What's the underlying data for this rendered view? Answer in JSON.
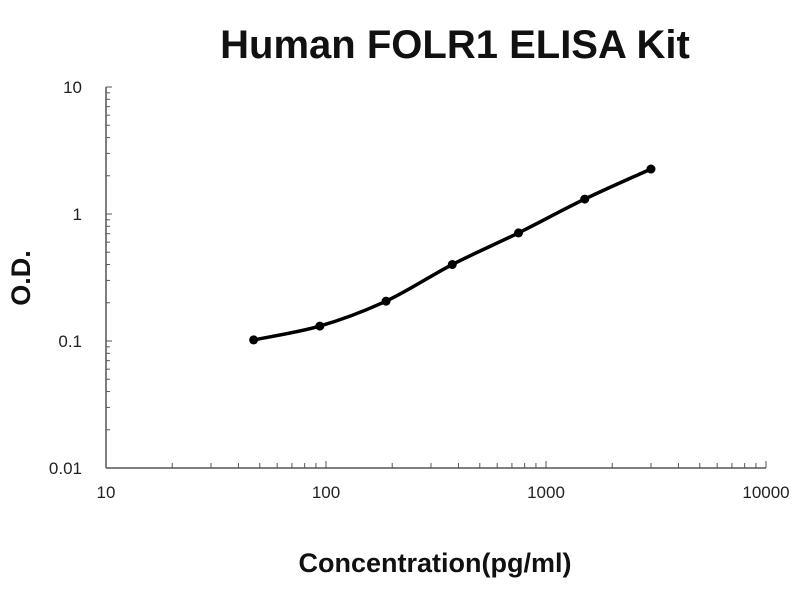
{
  "chart_data": {
    "type": "line",
    "title": "Human FOLR1 ELISA Kit",
    "xlabel": "Concentration(pg/ml)",
    "ylabel": "O.D.",
    "x_scale": "log",
    "y_scale": "log",
    "xlim": [
      10,
      10000
    ],
    "ylim": [
      0.01,
      10
    ],
    "x_ticks": [
      "10",
      "100",
      "1000",
      "10000"
    ],
    "y_ticks": [
      "0.01",
      "0.1",
      "1",
      "10"
    ],
    "grid": false,
    "series": [
      {
        "x": [
          46.88,
          93.75,
          187.5,
          375,
          750,
          1500,
          3000
        ],
        "y": [
          0.102,
          0.131,
          0.206,
          0.4,
          0.71,
          1.31,
          2.26
        ],
        "color": "#000000",
        "markers": true,
        "smooth": true
      }
    ]
  }
}
